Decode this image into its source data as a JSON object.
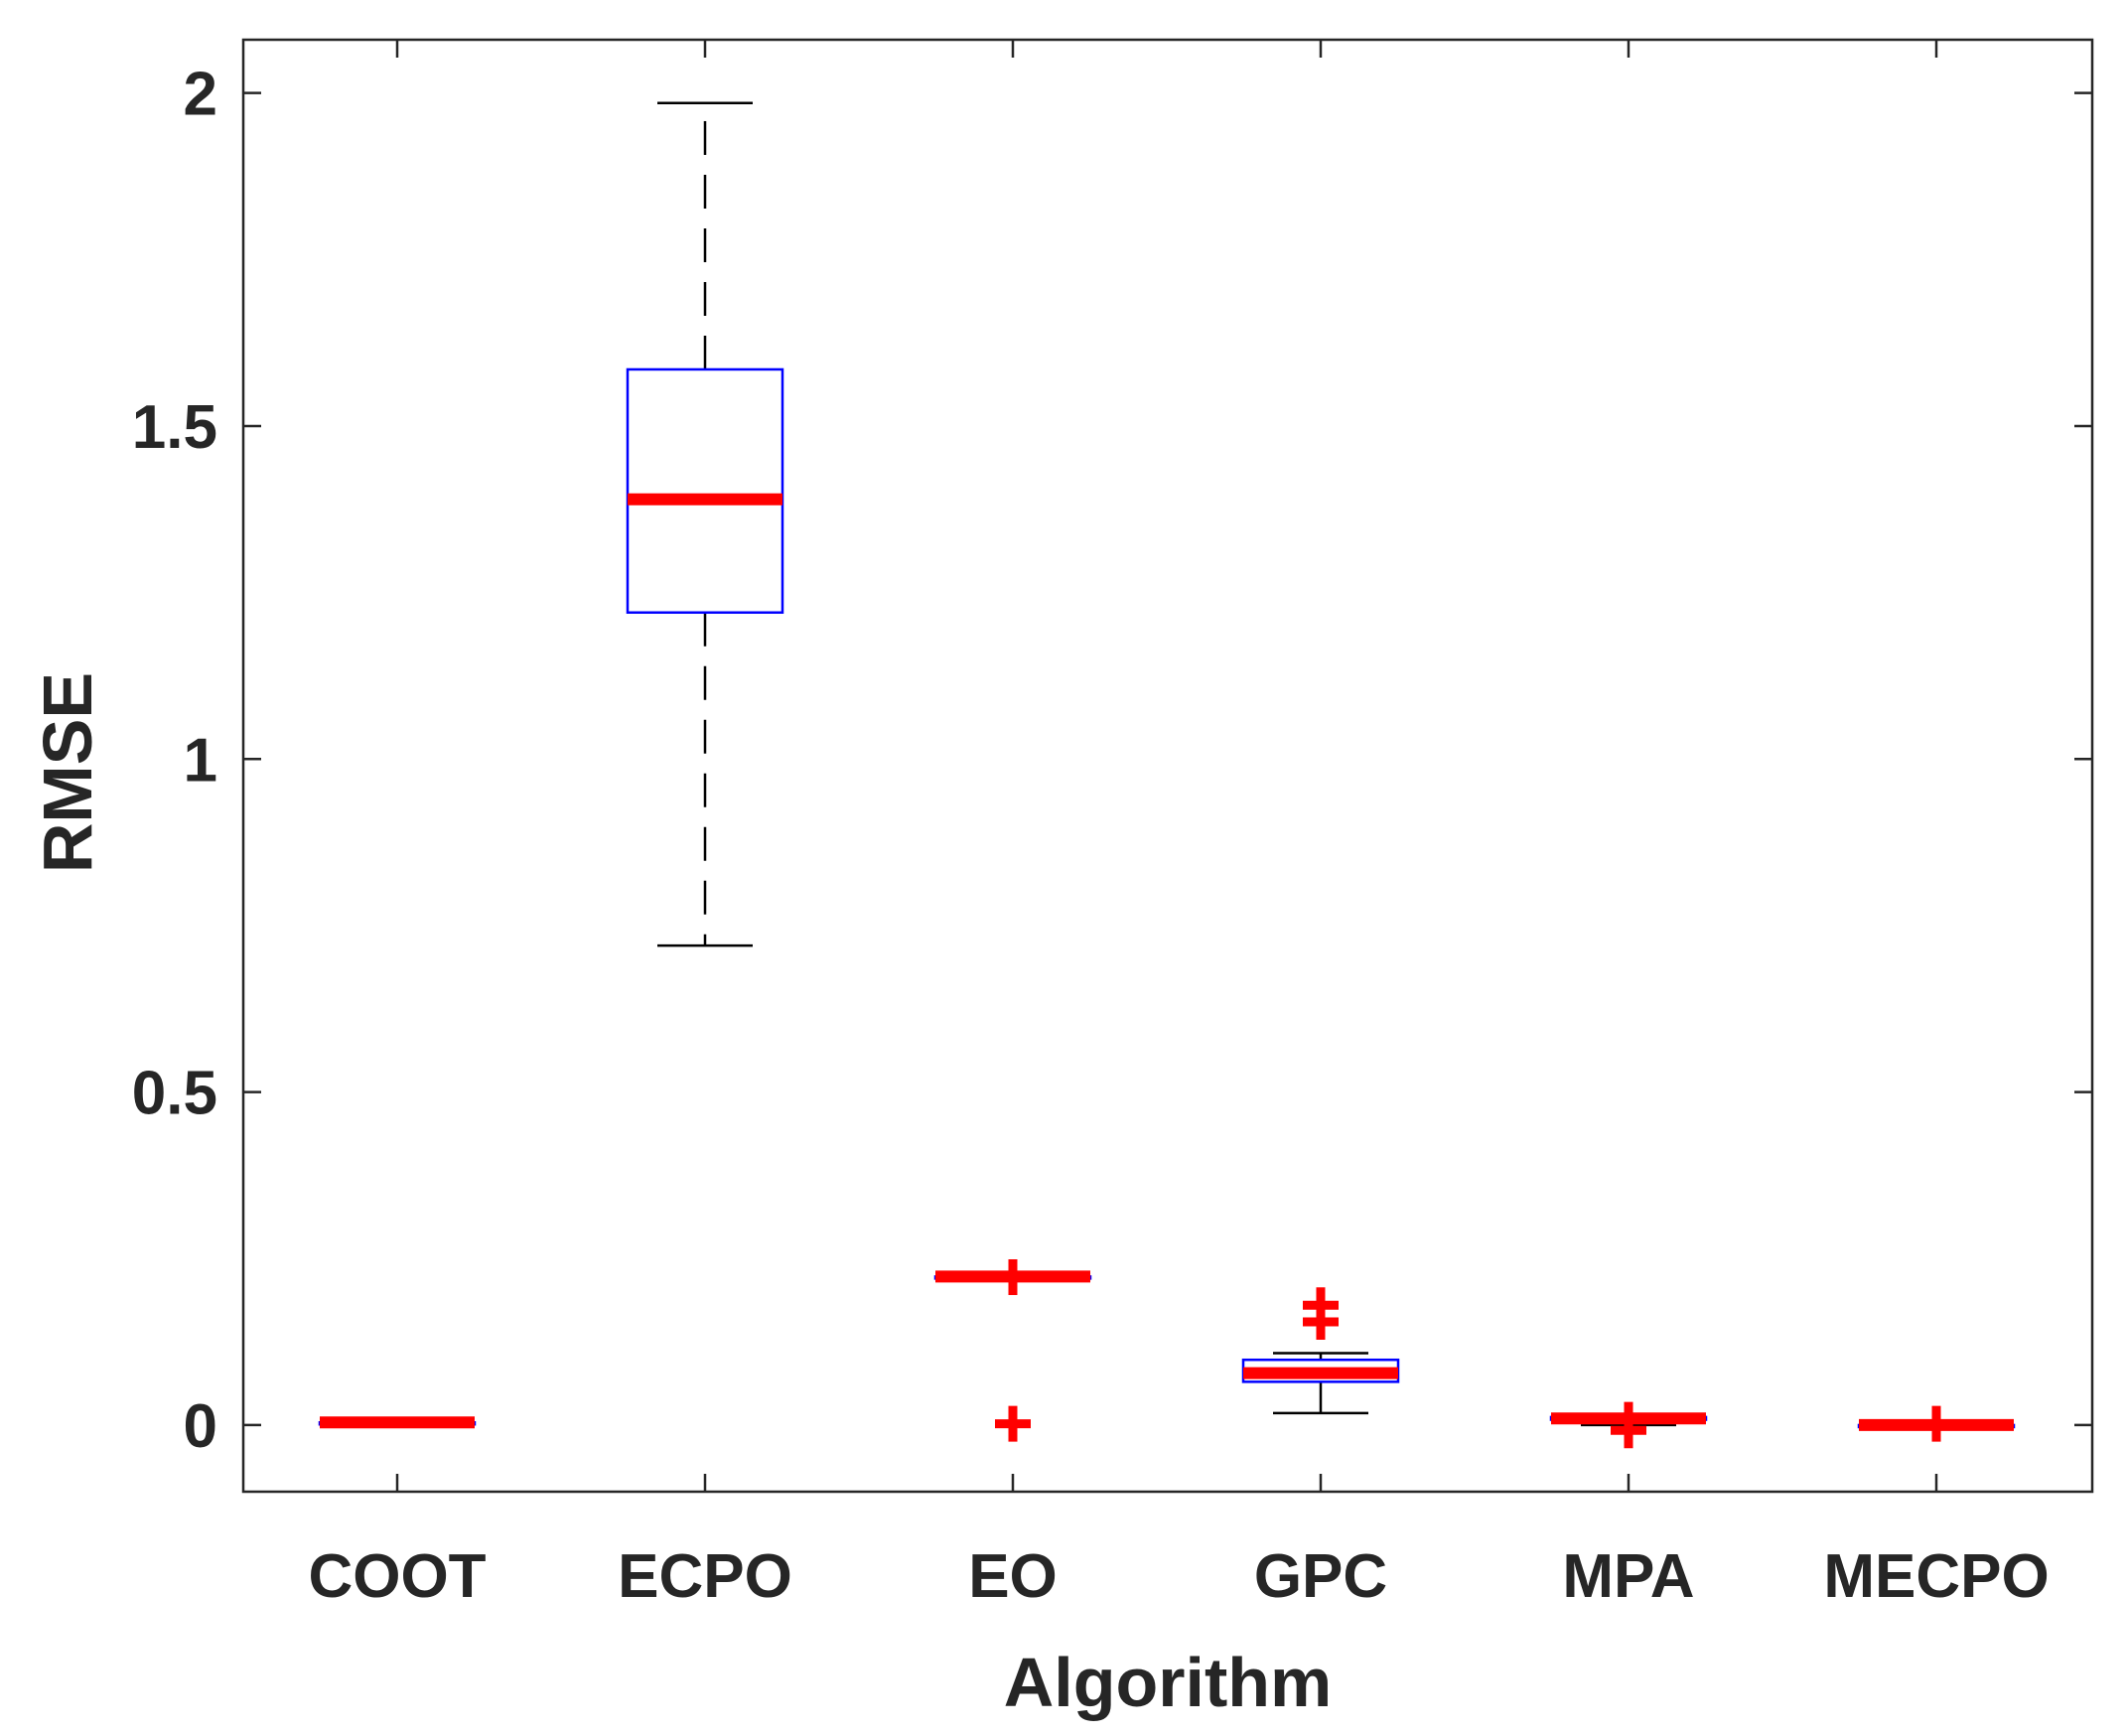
{
  "chart_data": {
    "type": "box",
    "xlabel": "Algorithm",
    "ylabel": "RMSE",
    "ylim": [
      -0.1,
      2.08
    ],
    "yticks": [
      0,
      0.5,
      1,
      1.5,
      2
    ],
    "ytick_labels": [
      "0",
      "0.5",
      "1",
      "1.5",
      "2"
    ],
    "categories": [
      "COOT",
      "ECPO",
      "EO",
      "GPC",
      "MPA",
      "MECPO"
    ],
    "boxes": [
      {
        "name": "COOT",
        "whisker_low": 0.004,
        "q1": 0.004,
        "median": 0.004,
        "q3": 0.004,
        "whisker_high": 0.004,
        "outliers": []
      },
      {
        "name": "ECPO",
        "whisker_low": 0.72,
        "q1": 1.22,
        "median": 1.39,
        "q3": 1.585,
        "whisker_high": 1.985,
        "outliers": []
      },
      {
        "name": "EO",
        "whisker_low": 0.223,
        "q1": 0.223,
        "median": 0.223,
        "q3": 0.223,
        "whisker_high": 0.223,
        "outliers": [
          0.222,
          0.002
        ]
      },
      {
        "name": "GPC",
        "whisker_low": 0.018,
        "q1": 0.065,
        "median": 0.078,
        "q3": 0.098,
        "whisker_high": 0.108,
        "outliers": [
          0.18,
          0.155
        ]
      },
      {
        "name": "MPA",
        "whisker_low": 0.0,
        "q1": 0.008,
        "median": 0.01,
        "q3": 0.012,
        "whisker_high": 0.012,
        "outliers": [
          0.008,
          -0.008
        ]
      },
      {
        "name": "MECPO",
        "whisker_low": 0.0,
        "q1": 0.0,
        "median": 0.0,
        "q3": 0.0,
        "whisker_high": 0.0,
        "outliers": [
          0.002
        ]
      }
    ],
    "colors": {
      "box": "#0000ff",
      "median": "#ff0000",
      "outlier": "#ff0000",
      "whisker": "#000000",
      "axis": "#262626"
    }
  }
}
